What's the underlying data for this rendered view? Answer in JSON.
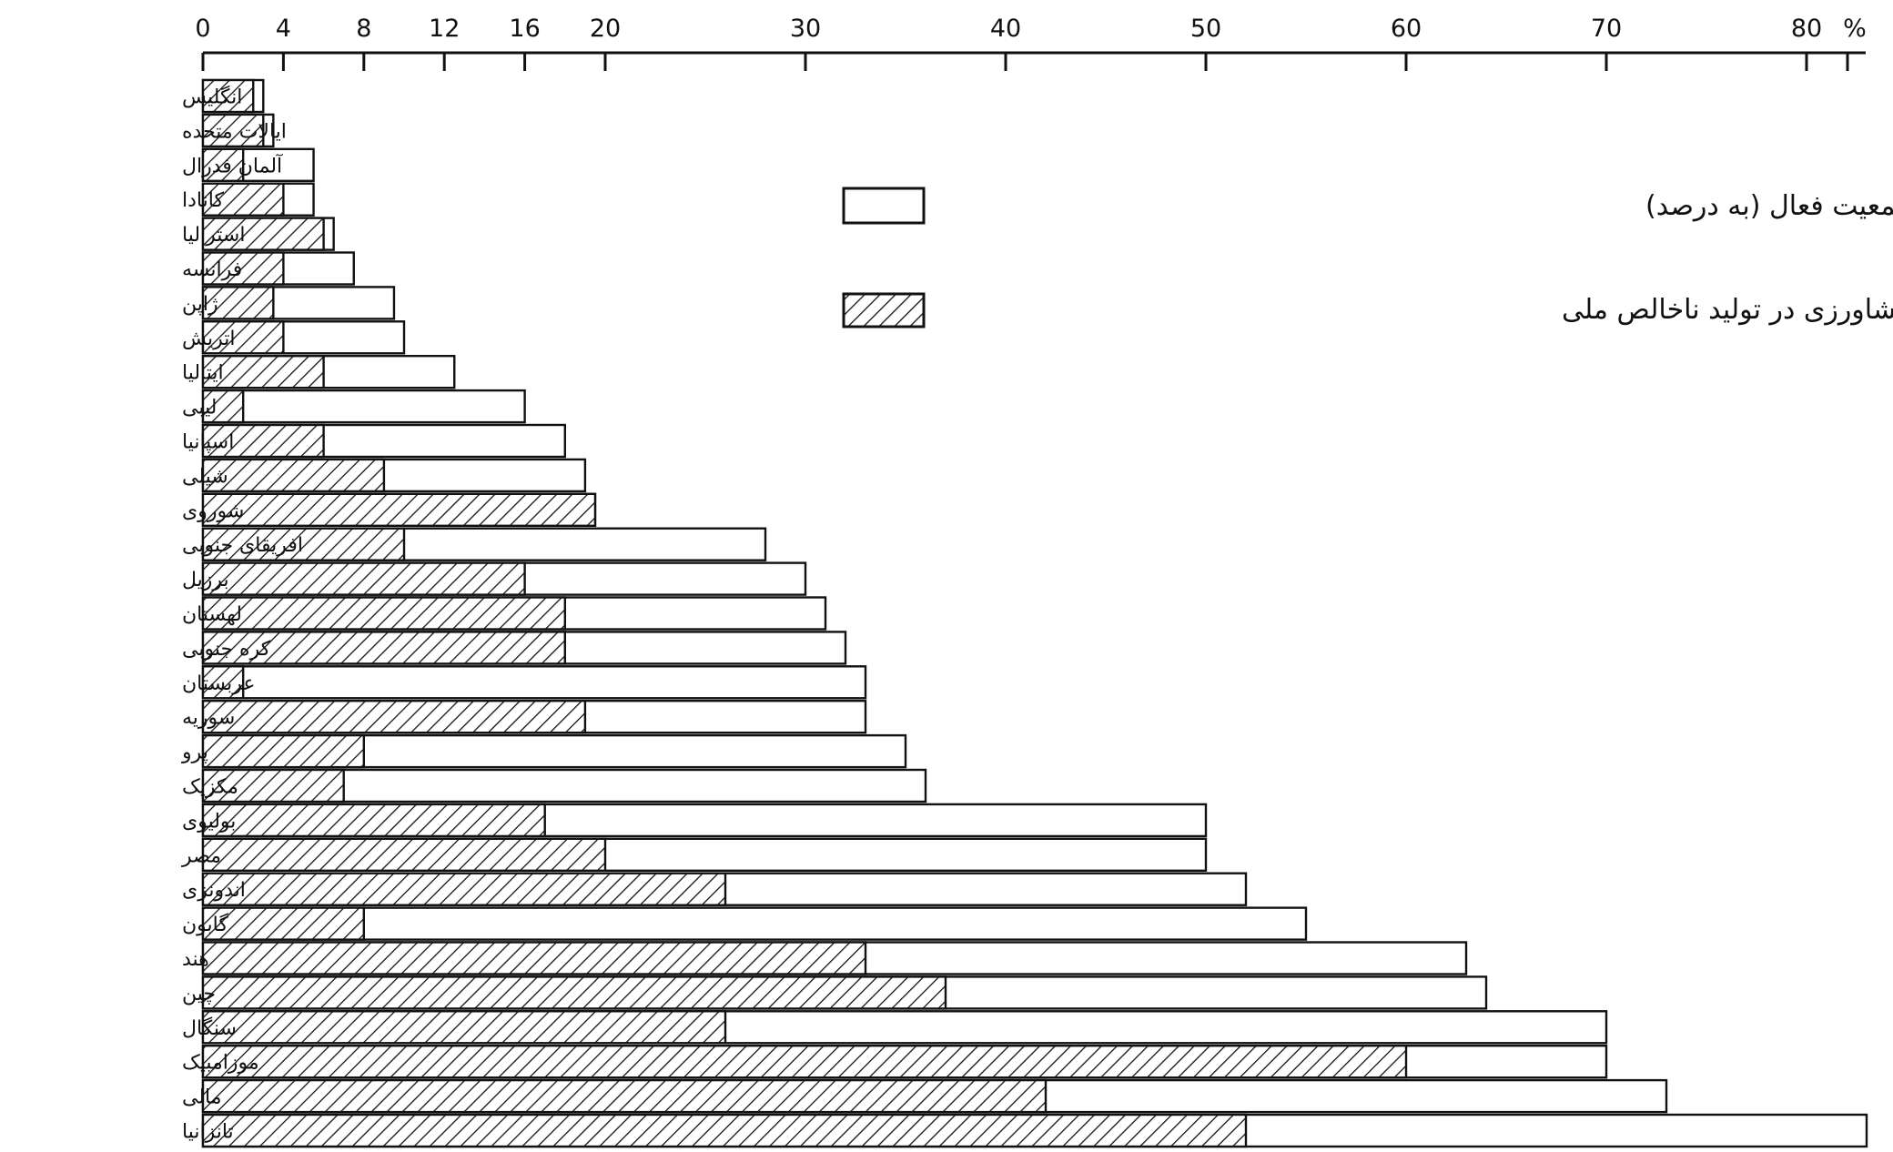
{
  "chart_data": {
    "type": "bar",
    "orientation": "horizontal",
    "stacked": false,
    "xlim": [
      0,
      83
    ],
    "x_ticks": [
      0,
      4,
      8,
      12,
      16,
      20,
      30,
      40,
      50,
      60,
      70,
      80
    ],
    "x_tick_labels": [
      "0",
      "4",
      "8",
      "12",
      "16",
      "20",
      "30",
      "40",
      "50",
      "60",
      "70",
      "80"
    ],
    "unit_label": "%",
    "categories": [
      "انگلیس",
      "ایالات متحده",
      "آلمان فدرال",
      "کانادا",
      "استرالیا",
      "فرانسه",
      "ژاپن",
      "اتریش",
      "ایتالیا",
      "لیبی",
      "اسپانیا",
      "شیلی",
      "شوروی",
      "افریقای جنوبی",
      "برزیل",
      "لهستان",
      "کره جنوبی",
      "عربستان",
      "سوریه",
      "پرو",
      "مکزیک",
      "بولیوی",
      "مصر",
      "اندونزی",
      "گابون",
      "هند",
      "چین",
      "سنگال",
      "موزامبیک",
      "مالی",
      "تانزانیا"
    ],
    "series": [
      {
        "name": "سهم کشاورزی در جمعیت فعال (به درصد)",
        "pattern": "empty",
        "values": [
          3,
          3.5,
          5.5,
          5.5,
          6.5,
          7.5,
          9.5,
          10,
          12.5,
          16,
          18,
          19,
          19.5,
          28,
          30,
          31,
          32,
          33,
          33,
          35,
          36,
          50,
          50,
          52,
          55,
          63,
          64,
          70,
          70,
          73,
          83
        ]
      },
      {
        "name": "سهم کشاورزی در تولید ناخالص ملی",
        "pattern": "hatched",
        "values": [
          2.5,
          3,
          2,
          4,
          6,
          4,
          3.5,
          4,
          6,
          2,
          6,
          9,
          19.5,
          10,
          16,
          18,
          18,
          2,
          19,
          8,
          7,
          17,
          20,
          26,
          8,
          33,
          37,
          26,
          60,
          42,
          52
        ]
      }
    ],
    "legend_position": "top-center",
    "grid": false
  },
  "colors": {
    "ink": "#111111",
    "background": "#ffffff"
  }
}
